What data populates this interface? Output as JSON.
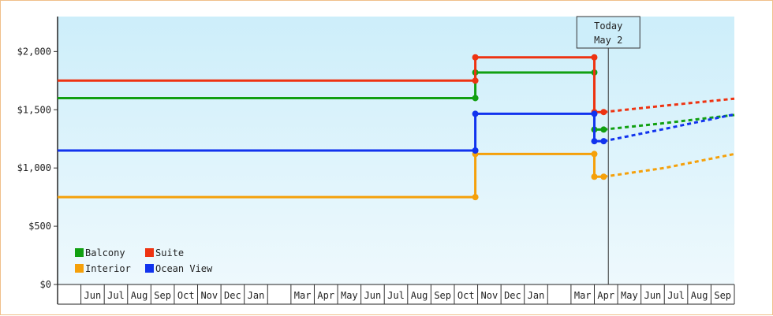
{
  "chart_data": {
    "type": "line",
    "step": true,
    "y_axis": {
      "min": 0,
      "max": 2300,
      "ticks": [
        {
          "value": 0,
          "label": "$0"
        },
        {
          "value": 500,
          "label": "$500"
        },
        {
          "value": 1000,
          "label": "$1,000"
        },
        {
          "value": 1500,
          "label": "$1,500"
        },
        {
          "value": 2000,
          "label": "$2,000"
        }
      ]
    },
    "x_axis": {
      "month_labels": [
        "Jun",
        "Jul",
        "Aug",
        "Sep",
        "Oct",
        "Nov",
        "Dec",
        "Jan",
        "",
        "Mar",
        "Apr",
        "May",
        "Jun",
        "Jul",
        "Aug",
        "Sep",
        "Oct",
        "Nov",
        "Dec",
        "Jan",
        "",
        "Mar",
        "Apr",
        "May",
        "Jun",
        "Jul",
        "Aug",
        "Sep"
      ],
      "leading_blank": true,
      "start_index": 0,
      "end_index": 29
    },
    "marker": {
      "line1": "Today",
      "line2": "May 2",
      "x": 23.6
    },
    "legend": {
      "placement": "bottom-left",
      "rows": [
        [
          "Balcony",
          "Suite"
        ],
        [
          "Interior",
          "Ocean View"
        ]
      ]
    },
    "series": [
      {
        "name": "Balcony",
        "color": "#11a011",
        "solid": [
          [
            0,
            1600
          ],
          [
            17.9,
            1600
          ],
          [
            17.9,
            1820
          ],
          [
            23.0,
            1820
          ],
          [
            23.0,
            1330
          ],
          [
            23.4,
            1330
          ]
        ],
        "dashed": [
          [
            23.4,
            1330
          ],
          [
            26.0,
            1385
          ],
          [
            29.0,
            1455
          ]
        ]
      },
      {
        "name": "Suite",
        "color": "#ee3311",
        "solid": [
          [
            0,
            1750
          ],
          [
            17.9,
            1750
          ],
          [
            17.9,
            1950
          ],
          [
            23.0,
            1950
          ],
          [
            23.0,
            1480
          ],
          [
            23.4,
            1480
          ]
        ],
        "dashed": [
          [
            23.4,
            1480
          ],
          [
            26.0,
            1535
          ],
          [
            29.0,
            1595
          ]
        ]
      },
      {
        "name": "Interior",
        "color": "#f5a00a",
        "solid": [
          [
            0,
            750
          ],
          [
            17.9,
            750
          ],
          [
            17.9,
            1120
          ],
          [
            23.0,
            1120
          ],
          [
            23.0,
            925
          ],
          [
            23.4,
            925
          ]
        ],
        "dashed": [
          [
            23.4,
            925
          ],
          [
            26.0,
            1000
          ],
          [
            29.0,
            1120
          ]
        ]
      },
      {
        "name": "Ocean View",
        "color": "#1133ee",
        "solid": [
          [
            0,
            1150
          ],
          [
            17.9,
            1150
          ],
          [
            17.9,
            1465
          ],
          [
            23.0,
            1465
          ],
          [
            23.0,
            1230
          ],
          [
            23.4,
            1230
          ]
        ],
        "dashed": [
          [
            23.4,
            1230
          ],
          [
            26.0,
            1335
          ],
          [
            29.0,
            1460
          ]
        ]
      }
    ]
  }
}
